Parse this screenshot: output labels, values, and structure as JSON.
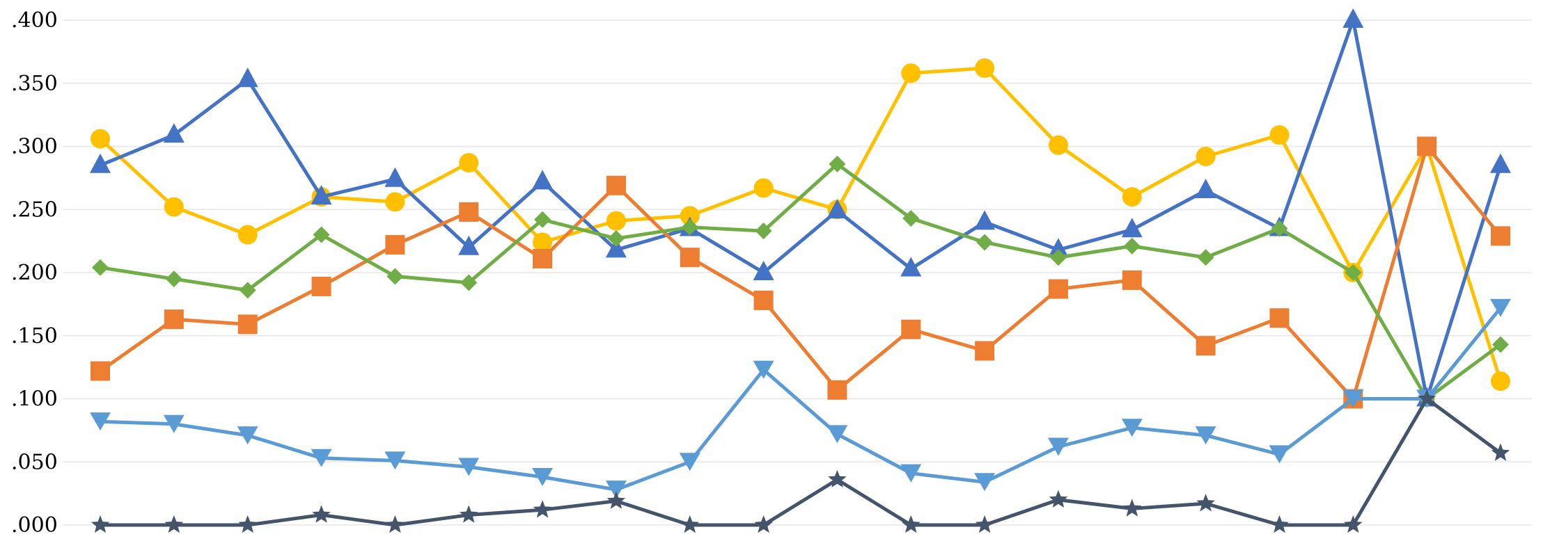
{
  "chart_data": {
    "type": "line",
    "title": "",
    "xlabel": "",
    "ylabel": "",
    "grid": true,
    "ylim": [
      0,
      0.4
    ],
    "y_ticks": [
      {
        "value": 0.0,
        "label": ".000"
      },
      {
        "value": 0.05,
        "label": ".050"
      },
      {
        "value": 0.1,
        "label": ".100"
      },
      {
        "value": 0.15,
        "label": ".150"
      },
      {
        "value": 0.2,
        "label": ".200"
      },
      {
        "value": 0.25,
        "label": ".250"
      },
      {
        "value": 0.3,
        "label": ".300"
      },
      {
        "value": 0.35,
        "label": ".350"
      },
      {
        "value": 0.4,
        "label": ".400"
      }
    ],
    "x": [
      1,
      2,
      3,
      4,
      5,
      6,
      7,
      8,
      9,
      10,
      11,
      12,
      13,
      14,
      15,
      16,
      17,
      18,
      19,
      20
    ],
    "series": [
      {
        "marker": "circle",
        "color": "#FFC000",
        "values": [
          0.306,
          0.252,
          0.23,
          0.26,
          0.256,
          0.287,
          0.224,
          0.241,
          0.245,
          0.267,
          0.25,
          0.358,
          0.362,
          0.301,
          0.26,
          0.292,
          0.309,
          0.2,
          0.3,
          0.114
        ]
      },
      {
        "marker": "triangle-up",
        "color": "#4472C4",
        "values": [
          0.285,
          0.309,
          0.353,
          0.26,
          0.274,
          0.22,
          0.272,
          0.218,
          0.235,
          0.2,
          0.249,
          0.203,
          0.24,
          0.218,
          0.234,
          0.265,
          0.235,
          0.4,
          0.1,
          0.285
        ]
      },
      {
        "marker": "square",
        "color": "#ED7D31",
        "values": [
          0.122,
          0.163,
          0.159,
          0.189,
          0.222,
          0.248,
          0.211,
          0.269,
          0.212,
          0.178,
          0.107,
          0.155,
          0.138,
          0.187,
          0.194,
          0.142,
          0.164,
          0.1,
          0.3,
          0.229
        ]
      },
      {
        "marker": "diamond",
        "color": "#70AD47",
        "values": [
          0.204,
          0.195,
          0.186,
          0.23,
          0.197,
          0.192,
          0.242,
          0.227,
          0.236,
          0.233,
          0.286,
          0.243,
          0.224,
          0.212,
          0.221,
          0.212,
          0.235,
          0.2,
          0.1,
          0.143
        ]
      },
      {
        "marker": "triangle-down",
        "color": "#5B9BD5",
        "values": [
          0.082,
          0.08,
          0.071,
          0.053,
          0.051,
          0.046,
          0.038,
          0.028,
          0.05,
          0.123,
          0.072,
          0.041,
          0.034,
          0.062,
          0.077,
          0.071,
          0.056,
          0.1,
          0.1,
          0.172
        ]
      },
      {
        "marker": "star",
        "color": "#44546A",
        "values": [
          0.0,
          0.0,
          0.0,
          0.008,
          0.0,
          0.008,
          0.012,
          0.019,
          0.0,
          0.0,
          0.036,
          0.0,
          0.0,
          0.02,
          0.013,
          0.017,
          0.0,
          0.0,
          0.1,
          0.057
        ]
      }
    ]
  }
}
